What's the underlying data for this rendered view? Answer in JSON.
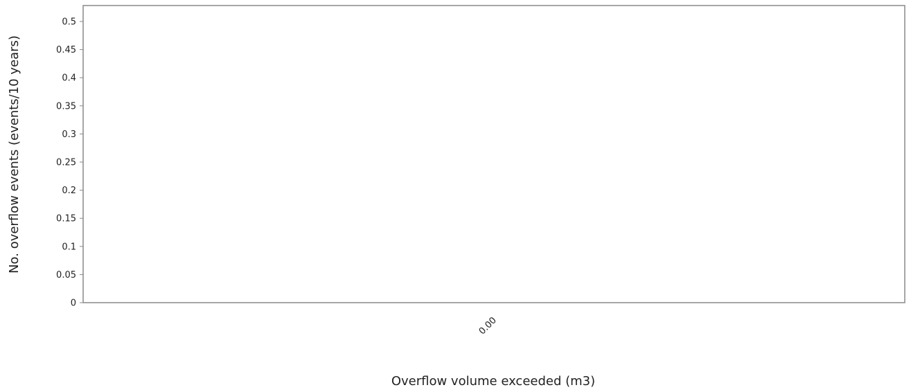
{
  "chart_data": {
    "type": "bar",
    "title": "",
    "xlabel": "Overflow volume exceeded (m3)",
    "ylabel": "No. overflow events (events/10 years)",
    "categories": [
      "0.00"
    ],
    "values": [
      0
    ],
    "ylim": [
      0,
      0.5
    ],
    "yticks": [
      "0",
      "0.05",
      "0.1",
      "0.15",
      "0.2",
      "0.25",
      "0.3",
      "0.35",
      "0.4",
      "0.45",
      "0.5"
    ],
    "grid": false,
    "legend": "none",
    "colors": {
      "frame": "#888888",
      "text": "#222222"
    }
  }
}
